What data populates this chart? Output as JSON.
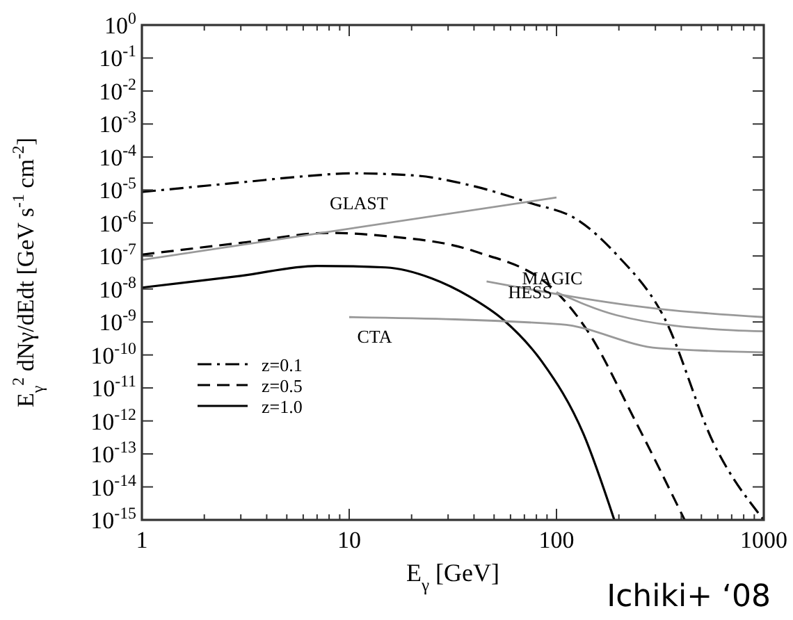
{
  "chart_data": {
    "type": "line",
    "xlabel": "E$_{γ}$ [GeV]",
    "ylabel": "E$_{γ}$$^{2}$ dNγ/dEdt [GeV s$^{-1}$ cm$^{-2}$]",
    "log": "xy",
    "xlim": [
      1,
      1000
    ],
    "xticks": [
      1,
      10,
      100,
      1000
    ],
    "ylim": [
      1e-15,
      1
    ],
    "yticks": [
      {
        "value": 1,
        "label": "10$^{0}$"
      },
      {
        "value": 0.1,
        "label": "10$^{-1}$"
      },
      {
        "value": 0.01,
        "label": "10$^{-2}$"
      },
      {
        "value": 0.001,
        "label": "10$^{-3}$"
      },
      {
        "value": 0.0001,
        "label": "10$^{-4}$"
      },
      {
        "value": 1e-05,
        "label": "10$^{-5}$"
      },
      {
        "value": 1e-06,
        "label": "10$^{-6}$"
      },
      {
        "value": 1e-07,
        "label": "10$^{-7}$"
      },
      {
        "value": 1e-08,
        "label": "10$^{-8}$"
      },
      {
        "value": 1e-09,
        "label": "10$^{-9}$"
      },
      {
        "value": 1e-10,
        "label": "10$^{-10}$"
      },
      {
        "value": 1e-11,
        "label": "10$^{-11}$"
      },
      {
        "value": 1e-12,
        "label": "10$^{-12}$"
      },
      {
        "value": 1e-13,
        "label": "10$^{-13}$"
      },
      {
        "value": 1e-14,
        "label": "10$^{-14}$"
      },
      {
        "value": 1e-15,
        "label": "10$^{-15}$"
      }
    ],
    "grid": false,
    "legend": "left",
    "series": [
      {
        "name": "z=0.1",
        "color": "#000000",
        "line_style": "dashdot",
        "x": [
          1,
          3,
          7,
          10,
          20,
          40,
          75,
          125,
          195,
          330,
          575,
          1000
        ],
        "values": [
          8.7e-06,
          1.7e-05,
          2.8e-05,
          3.2e-05,
          2.8e-05,
          1.3e-05,
          4e-06,
          1.3e-06,
          1.1e-07,
          1.4e-09,
          2e-13,
          1e-15
        ]
      },
      {
        "name": "z=0.5",
        "color": "#000000",
        "line_style": "dashed",
        "x": [
          1,
          3,
          8,
          15,
          40,
          100,
          140,
          240,
          415
        ],
        "values": [
          1.1e-07,
          2.5e-07,
          5e-07,
          4e-07,
          1.4e-07,
          8e-09,
          5.8e-10,
          1e-12,
          1e-15
        ]
      },
      {
        "name": "z=1.0",
        "color": "#000000",
        "line_style": "solid",
        "x": [
          1,
          3,
          7,
          15,
          25,
          38,
          56,
          85,
          135,
          190
        ],
        "values": [
          1.1e-08,
          2.5e-08,
          5e-08,
          4.5e-08,
          2.1e-08,
          5.9e-09,
          1.1e-09,
          6.3e-11,
          4e-13,
          1e-15
        ]
      },
      {
        "name": "GLAST",
        "color": "#999999",
        "line_style": "solid",
        "x": [
          1,
          100
        ],
        "values": [
          7.6e-08,
          5.9e-06
        ]
      },
      {
        "name": "MAGIC",
        "color": "#999999",
        "line_style": "solid",
        "x": [
          46,
          310,
          1000
        ],
        "values": [
          1.7e-08,
          2.5e-09,
          1.4e-09
        ]
      },
      {
        "name": "HESS",
        "color": "#999999",
        "line_style": "solid",
        "x": [
          100,
          195,
          710,
          1000
        ],
        "values": [
          7.9e-09,
          1.6e-09,
          5.6e-10,
          5.2e-10
        ]
      },
      {
        "name": "CTA",
        "color": "#999999",
        "line_style": "solid",
        "x": [
          10,
          105,
          310,
          1000
        ],
        "values": [
          1.4e-09,
          8.5e-10,
          1.6e-10,
          1.2e-10
        ]
      }
    ],
    "annotations": [
      "Ichiki+ ‘08"
    ]
  }
}
